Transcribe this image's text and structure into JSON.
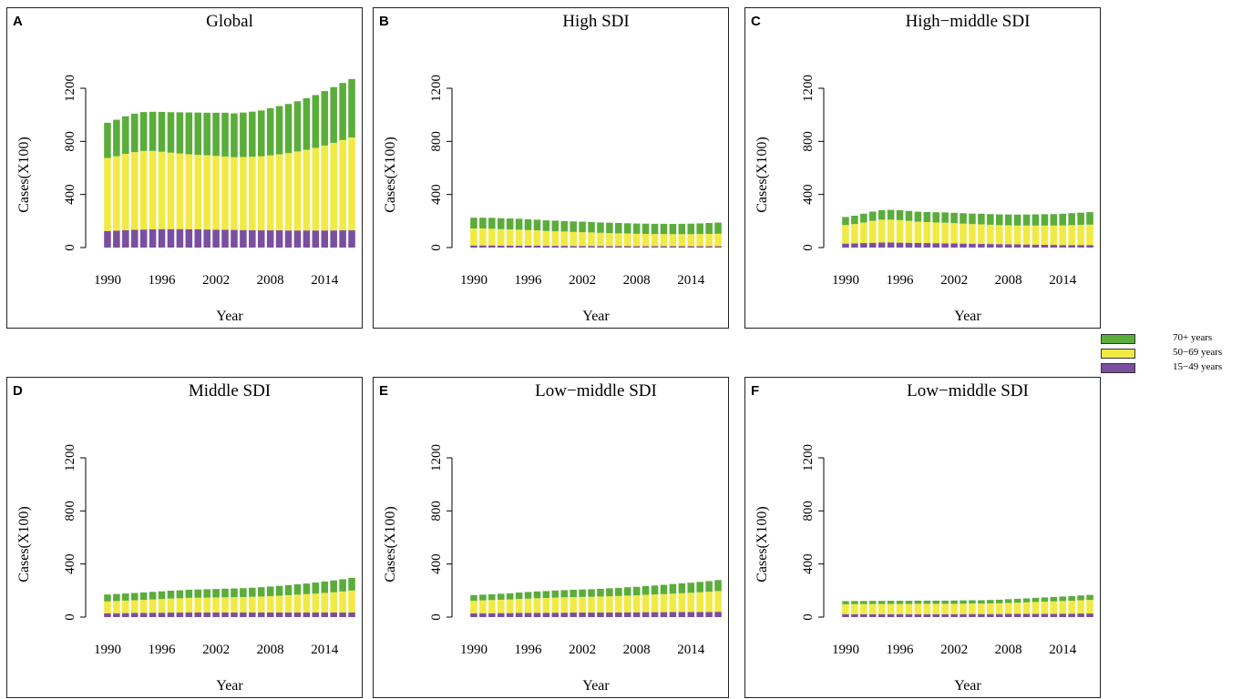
{
  "legend": {
    "items": [
      {
        "label": "70+ years",
        "color": "#5aad3a"
      },
      {
        "label": "50−69 years",
        "color": "#f2ea44"
      },
      {
        "label": "15−49 years",
        "color": "#7b4fa0"
      }
    ]
  },
  "chart_data": [
    {
      "type": "bar",
      "stacked": true,
      "letter": "A",
      "title": "Global",
      "xlabel": "Year",
      "ylabel": "Cases(X100)",
      "ylim": [
        0,
        1200
      ],
      "yticks": [
        "0",
        "400",
        "800",
        "1200"
      ],
      "xticks": [
        "1990",
        "1996",
        "2002",
        "2008",
        "2014"
      ],
      "years": [
        1990,
        1991,
        1992,
        1993,
        1994,
        1995,
        1996,
        1997,
        1998,
        1999,
        2000,
        2001,
        2002,
        2003,
        2004,
        2005,
        2006,
        2007,
        2008,
        2009,
        2010,
        2011,
        2012,
        2013,
        2014,
        2015,
        2016,
        2017
      ],
      "series": [
        {
          "name": "15−49 years",
          "values": [
            125,
            128,
            131,
            134,
            136,
            138,
            139,
            139,
            139,
            138,
            137,
            136,
            135,
            134,
            133,
            132,
            131,
            130,
            130,
            130,
            129,
            129,
            129,
            129,
            129,
            129,
            130,
            130
          ]
        },
        {
          "name": "50−69 years",
          "values": [
            550,
            560,
            575,
            585,
            592,
            590,
            583,
            576,
            570,
            565,
            562,
            560,
            556,
            552,
            548,
            550,
            553,
            558,
            565,
            573,
            583,
            595,
            608,
            622,
            640,
            660,
            680,
            700
          ]
        },
        {
          "name": "70+ years",
          "values": [
            265,
            275,
            283,
            290,
            293,
            295,
            300,
            305,
            310,
            315,
            318,
            320,
            325,
            330,
            330,
            335,
            340,
            345,
            355,
            363,
            370,
            378,
            388,
            398,
            410,
            420,
            430,
            440
          ]
        }
      ]
    },
    {
      "type": "bar",
      "stacked": true,
      "letter": "B",
      "title": "High SDI",
      "xlabel": "Year",
      "ylabel": "Cases(X100)",
      "ylim": [
        0,
        1200
      ],
      "yticks": [
        "0",
        "400",
        "800",
        "1200"
      ],
      "xticks": [
        "1990",
        "1996",
        "2002",
        "2008",
        "2014"
      ],
      "years": [
        1990,
        1991,
        1992,
        1993,
        1994,
        1995,
        1996,
        1997,
        1998,
        1999,
        2000,
        2001,
        2002,
        2003,
        2004,
        2005,
        2006,
        2007,
        2008,
        2009,
        2010,
        2011,
        2012,
        2013,
        2014,
        2015,
        2016,
        2017
      ],
      "series": [
        {
          "name": "15−49 years",
          "values": [
            16,
            16,
            16,
            15,
            15,
            15,
            14,
            14,
            13,
            13,
            13,
            12,
            12,
            12,
            11,
            11,
            11,
            11,
            10,
            10,
            10,
            10,
            10,
            10,
            10,
            10,
            10,
            10
          ]
        },
        {
          "name": "50−69 years",
          "values": [
            128,
            128,
            126,
            124,
            122,
            120,
            118,
            115,
            112,
            110,
            108,
            106,
            104,
            102,
            100,
            98,
            96,
            95,
            94,
            93,
            92,
            92,
            91,
            91,
            91,
            92,
            93,
            94
          ]
        },
        {
          "name": "70+ years",
          "values": [
            81,
            81,
            82,
            82,
            82,
            82,
            81,
            81,
            80,
            80,
            79,
            79,
            79,
            78,
            78,
            78,
            78,
            77,
            77,
            77,
            77,
            77,
            77,
            78,
            79,
            80,
            82,
            84
          ]
        }
      ]
    },
    {
      "type": "bar",
      "stacked": true,
      "letter": "C",
      "title": "High−middle SDI",
      "xlabel": "Year",
      "ylabel": "Cases(X100)",
      "ylim": [
        0,
        1200
      ],
      "yticks": [
        "0",
        "400",
        "800",
        "1200"
      ],
      "xticks": [
        "1990",
        "1996",
        "2002",
        "2008",
        "2014"
      ],
      "years": [
        1990,
        1991,
        1992,
        1993,
        1994,
        1995,
        1996,
        1997,
        1998,
        1999,
        2000,
        2001,
        2002,
        2003,
        2004,
        2005,
        2006,
        2007,
        2008,
        2009,
        2010,
        2011,
        2012,
        2013,
        2014,
        2015,
        2016,
        2017
      ],
      "series": [
        {
          "name": "15−49 years",
          "values": [
            30,
            32,
            34,
            36,
            38,
            38,
            37,
            36,
            35,
            34,
            33,
            32,
            31,
            30,
            29,
            28,
            27,
            26,
            25,
            24,
            23,
            22,
            21,
            20,
            19,
            19,
            19,
            19
          ]
        },
        {
          "name": "50−69 years",
          "values": [
            140,
            145,
            155,
            165,
            172,
            172,
            170,
            165,
            160,
            158,
            156,
            155,
            153,
            150,
            148,
            147,
            145,
            143,
            143,
            142,
            143,
            144,
            145,
            146,
            148,
            150,
            152,
            154
          ]
        },
        {
          "name": "70+ years",
          "values": [
            60,
            63,
            66,
            70,
            72,
            74,
            75,
            75,
            75,
            76,
            77,
            78,
            78,
            79,
            79,
            80,
            80,
            81,
            81,
            82,
            83,
            84,
            85,
            86,
            88,
            90,
            92,
            94
          ]
        }
      ]
    },
    {
      "type": "bar",
      "stacked": true,
      "letter": "D",
      "title": "Middle SDI",
      "xlabel": "Year",
      "ylabel": "Cases(X100)",
      "ylim": [
        0,
        1200
      ],
      "yticks": [
        "0",
        "400",
        "800",
        "1200"
      ],
      "xticks": [
        "1990",
        "1996",
        "2002",
        "2008",
        "2014"
      ],
      "years": [
        1990,
        1991,
        1992,
        1993,
        1994,
        1995,
        1996,
        1997,
        1998,
        1999,
        2000,
        2001,
        2002,
        2003,
        2004,
        2005,
        2006,
        2007,
        2008,
        2009,
        2010,
        2011,
        2012,
        2013,
        2014,
        2015,
        2016,
        2017
      ],
      "series": [
        {
          "name": "15−49 years",
          "values": [
            28,
            29,
            30,
            31,
            32,
            33,
            33,
            34,
            34,
            35,
            35,
            35,
            35,
            35,
            35,
            35,
            35,
            35,
            35,
            35,
            35,
            35,
            35,
            35,
            35,
            35,
            35,
            35
          ]
        },
        {
          "name": "50−69 years",
          "values": [
            90,
            92,
            94,
            96,
            98,
            100,
            103,
            106,
            108,
            110,
            111,
            112,
            113,
            114,
            115,
            116,
            118,
            120,
            123,
            126,
            130,
            134,
            138,
            142,
            147,
            152,
            158,
            165
          ]
        },
        {
          "name": "70+ years",
          "values": [
            52,
            53,
            54,
            55,
            56,
            57,
            58,
            59,
            60,
            61,
            62,
            63,
            64,
            65,
            66,
            67,
            68,
            70,
            72,
            74,
            76,
            78,
            80,
            83,
            86,
            89,
            92,
            95
          ]
        }
      ]
    },
    {
      "type": "bar",
      "stacked": true,
      "letter": "E",
      "title": "Low−middle SDI",
      "xlabel": "Year",
      "ylabel": "Cases(X100)",
      "ylim": [
        0,
        1200
      ],
      "yticks": [
        "0",
        "400",
        "800",
        "1200"
      ],
      "xticks": [
        "1990",
        "1996",
        "2002",
        "2008",
        "2014"
      ],
      "years": [
        1990,
        1991,
        1992,
        1993,
        1994,
        1995,
        1996,
        1997,
        1998,
        1999,
        2000,
        2001,
        2002,
        2003,
        2004,
        2005,
        2006,
        2007,
        2008,
        2009,
        2010,
        2011,
        2012,
        2013,
        2014,
        2015,
        2016,
        2017
      ],
      "series": [
        {
          "name": "15−49 years",
          "values": [
            28,
            29,
            29,
            30,
            30,
            31,
            31,
            32,
            32,
            33,
            33,
            34,
            34,
            34,
            35,
            35,
            35,
            36,
            36,
            37,
            37,
            37,
            38,
            38,
            38,
            39,
            39,
            40
          ]
        },
        {
          "name": "50−69 years",
          "values": [
            95,
            97,
            99,
            101,
            103,
            106,
            108,
            110,
            112,
            114,
            116,
            117,
            118,
            119,
            120,
            122,
            124,
            126,
            128,
            131,
            133,
            136,
            139,
            142,
            145,
            148,
            152,
            156
          ]
        },
        {
          "name": "70+ years",
          "values": [
            42,
            43,
            44,
            45,
            46,
            48,
            50,
            51,
            52,
            53,
            54,
            55,
            56,
            57,
            58,
            60,
            61,
            63,
            64,
            66,
            68,
            70,
            72,
            74,
            76,
            78,
            80,
            83
          ]
        }
      ]
    },
    {
      "type": "bar",
      "stacked": true,
      "letter": "F",
      "title": "Low−middle SDI",
      "xlabel": "Year",
      "ylabel": "Cases(X100)",
      "ylim": [
        0,
        1200
      ],
      "yticks": [
        "0",
        "400",
        "800",
        "1200"
      ],
      "xticks": [
        "1990",
        "1996",
        "2002",
        "2008",
        "2014"
      ],
      "years": [
        1990,
        1991,
        1992,
        1993,
        1994,
        1995,
        1996,
        1997,
        1998,
        1999,
        2000,
        2001,
        2002,
        2003,
        2004,
        2005,
        2006,
        2007,
        2008,
        2009,
        2010,
        2011,
        2012,
        2013,
        2014,
        2015,
        2016,
        2017
      ],
      "series": [
        {
          "name": "15−49 years",
          "values": [
            22,
            22,
            22,
            22,
            22,
            22,
            22,
            22,
            22,
            22,
            22,
            22,
            22,
            22,
            23,
            23,
            23,
            23,
            24,
            24,
            24,
            25,
            25,
            25,
            26,
            26,
            27,
            27
          ]
        },
        {
          "name": "50−69 years",
          "values": [
            75,
            76,
            76,
            77,
            77,
            77,
            77,
            77,
            78,
            78,
            78,
            78,
            78,
            79,
            79,
            79,
            80,
            81,
            83,
            85,
            87,
            89,
            91,
            93,
            95,
            97,
            100,
            102
          ]
        },
        {
          "name": "70+ years",
          "values": [
            23,
            23,
            23,
            23,
            23,
            24,
            24,
            24,
            24,
            24,
            24,
            24,
            25,
            25,
            25,
            25,
            26,
            27,
            28,
            29,
            30,
            31,
            32,
            33,
            34,
            35,
            36,
            38
          ]
        }
      ]
    }
  ]
}
